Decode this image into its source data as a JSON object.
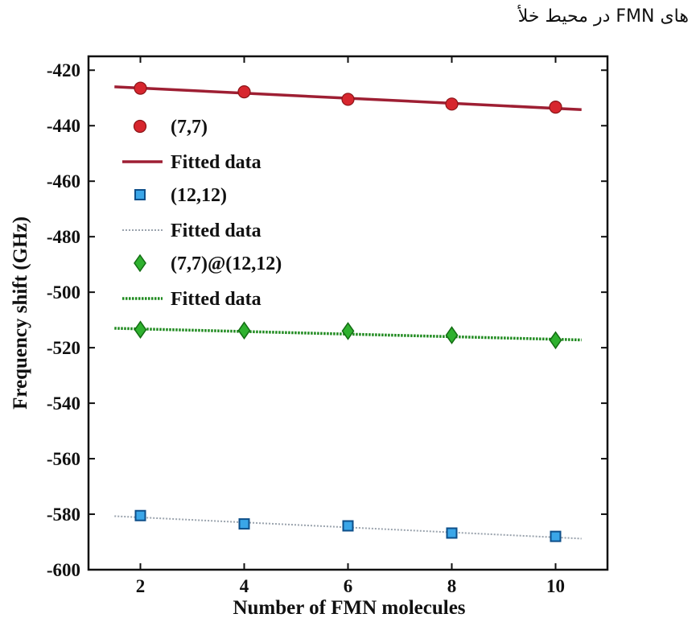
{
  "caption": "های FMN در محیط خلأ",
  "chart_data": {
    "type": "scatter",
    "xlabel": "Number of FMN molecules",
    "ylabel": "Frequency shift (GHz)",
    "xlim": [
      1,
      11
    ],
    "ylim": [
      -600,
      -415
    ],
    "xticks": [
      2,
      4,
      6,
      8,
      10
    ],
    "yticks": [
      -420,
      -440,
      -460,
      -480,
      -500,
      -520,
      -540,
      -560,
      -580,
      -600
    ],
    "grid": false,
    "legend_position": "top-left",
    "series": [
      {
        "name": "(7,7)",
        "marker": "circle",
        "color": "#d7262e",
        "x": [
          2,
          4,
          6,
          8,
          10
        ],
        "y": [
          -426.5,
          -427.8,
          -430.5,
          -432.2,
          -433.3
        ],
        "fit": {
          "name": "Fitted data",
          "x": [
            1.5,
            10.5
          ],
          "y": [
            -426.0,
            -434.2
          ],
          "style": "solid",
          "color": "#9e1f33"
        }
      },
      {
        "name": "(12,12)",
        "marker": "square",
        "color": "#3aa6e8",
        "x": [
          2,
          4,
          6,
          8,
          10
        ],
        "y": [
          -580.5,
          -583.5,
          -584.2,
          -586.8,
          -588.0
        ],
        "fit": {
          "name": "Fitted data",
          "x": [
            1.5,
            10.5
          ],
          "y": [
            -580.7,
            -588.8
          ],
          "style": "dotted",
          "color": "#9aa3ad"
        }
      },
      {
        "name": "(7,7)@(12,12)",
        "marker": "diamond",
        "color": "#2fb12f",
        "x": [
          2,
          4,
          6,
          8,
          10
        ],
        "y": [
          -513.5,
          -513.8,
          -514.0,
          -515.5,
          -517.3
        ],
        "fit": {
          "name": "Fitted data",
          "x": [
            1.5,
            10.5
          ],
          "y": [
            -513.0,
            -517.2
          ],
          "style": "dotted",
          "color": "#1f8a1f"
        }
      }
    ]
  }
}
